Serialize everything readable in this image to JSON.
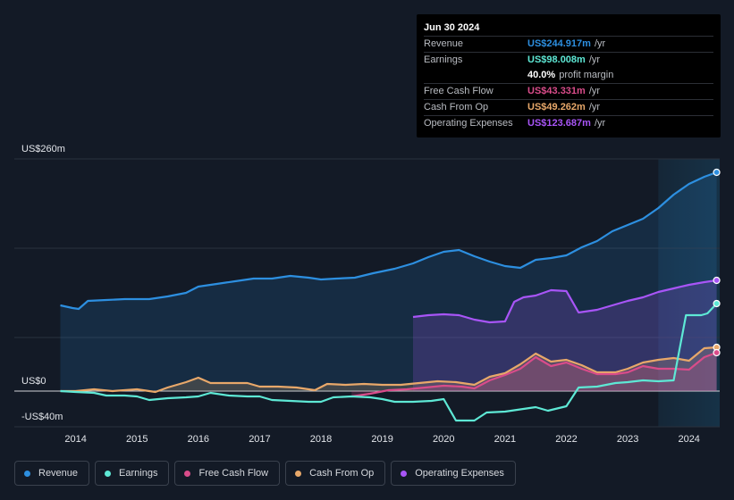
{
  "chart_data": {
    "type": "area",
    "title": "",
    "y_axis": {
      "top_label": "US$260m",
      "zero_label": "US$0",
      "bottom_label": "-US$40m",
      "ylim": [
        -40,
        260
      ]
    },
    "x_tick_labels": [
      "2014",
      "2015",
      "2016",
      "2017",
      "2018",
      "2019",
      "2020",
      "2021",
      "2022",
      "2023",
      "2024"
    ],
    "x_tick_values": [
      2014,
      2015,
      2016,
      2017,
      2018,
      2019,
      2020,
      2021,
      2022,
      2023,
      2024
    ],
    "xlim": [
      2013.0,
      2024.5
    ],
    "forecast_start": 2023.5,
    "series": [
      {
        "key": "revenue",
        "name": "Revenue",
        "color": "#2d8fe0",
        "fill": true,
        "points": [
          [
            2013.75,
            96
          ],
          [
            2013.95,
            93
          ],
          [
            2014.05,
            92
          ],
          [
            2014.2,
            101
          ],
          [
            2014.5,
            102
          ],
          [
            2014.8,
            103
          ],
          [
            2015.2,
            103
          ],
          [
            2015.5,
            106
          ],
          [
            2015.8,
            110
          ],
          [
            2016.0,
            117
          ],
          [
            2016.3,
            120
          ],
          [
            2016.6,
            123
          ],
          [
            2016.9,
            126
          ],
          [
            2017.2,
            126
          ],
          [
            2017.5,
            129
          ],
          [
            2017.8,
            127
          ],
          [
            2018.0,
            125
          ],
          [
            2018.25,
            126
          ],
          [
            2018.55,
            127
          ],
          [
            2018.85,
            132
          ],
          [
            2019.2,
            137
          ],
          [
            2019.5,
            143
          ],
          [
            2019.75,
            150
          ],
          [
            2020.0,
            156
          ],
          [
            2020.25,
            158
          ],
          [
            2020.5,
            151
          ],
          [
            2020.75,
            145
          ],
          [
            2021.0,
            140
          ],
          [
            2021.25,
            138
          ],
          [
            2021.5,
            147
          ],
          [
            2021.75,
            149
          ],
          [
            2022.0,
            152
          ],
          [
            2022.25,
            161
          ],
          [
            2022.5,
            168
          ],
          [
            2022.75,
            179
          ],
          [
            2023.0,
            186
          ],
          [
            2023.25,
            193
          ],
          [
            2023.5,
            205
          ],
          [
            2023.75,
            220
          ],
          [
            2024.0,
            232
          ],
          [
            2024.25,
            240
          ],
          [
            2024.45,
            245
          ]
        ]
      },
      {
        "key": "operating_expenses",
        "name": "Operating Expenses",
        "color": "#a855f7",
        "fill": true,
        "points": [
          [
            2019.5,
            83
          ],
          [
            2019.75,
            85
          ],
          [
            2020.0,
            86
          ],
          [
            2020.25,
            85
          ],
          [
            2020.5,
            80
          ],
          [
            2020.75,
            77
          ],
          [
            2021.0,
            78
          ],
          [
            2021.15,
            100
          ],
          [
            2021.3,
            105
          ],
          [
            2021.5,
            107
          ],
          [
            2021.75,
            113
          ],
          [
            2022.0,
            112
          ],
          [
            2022.2,
            88
          ],
          [
            2022.5,
            91
          ],
          [
            2022.75,
            96
          ],
          [
            2023.0,
            101
          ],
          [
            2023.25,
            105
          ],
          [
            2023.5,
            111
          ],
          [
            2023.75,
            115
          ],
          [
            2024.0,
            119
          ],
          [
            2024.25,
            122
          ],
          [
            2024.45,
            124
          ]
        ]
      },
      {
        "key": "cash_from_op",
        "name": "Cash From Op",
        "color": "#e8a86a",
        "fill": true,
        "points": [
          [
            2013.75,
            0
          ],
          [
            2014.0,
            0
          ],
          [
            2014.3,
            2
          ],
          [
            2014.6,
            0
          ],
          [
            2015.0,
            2
          ],
          [
            2015.3,
            -1
          ],
          [
            2015.5,
            4
          ],
          [
            2015.8,
            10
          ],
          [
            2016.0,
            15
          ],
          [
            2016.2,
            9
          ],
          [
            2016.5,
            9
          ],
          [
            2016.8,
            9
          ],
          [
            2017.0,
            5
          ],
          [
            2017.3,
            5
          ],
          [
            2017.6,
            4
          ],
          [
            2017.9,
            1
          ],
          [
            2018.1,
            8
          ],
          [
            2018.4,
            7
          ],
          [
            2018.7,
            8
          ],
          [
            2019.0,
            7
          ],
          [
            2019.3,
            7
          ],
          [
            2019.6,
            9
          ],
          [
            2019.9,
            11
          ],
          [
            2020.2,
            10
          ],
          [
            2020.5,
            7
          ],
          [
            2020.75,
            16
          ],
          [
            2021.0,
            20
          ],
          [
            2021.25,
            30
          ],
          [
            2021.5,
            42
          ],
          [
            2021.75,
            33
          ],
          [
            2022.0,
            35
          ],
          [
            2022.25,
            29
          ],
          [
            2022.5,
            21
          ],
          [
            2022.8,
            21
          ],
          [
            2023.0,
            25
          ],
          [
            2023.25,
            32
          ],
          [
            2023.5,
            35
          ],
          [
            2023.75,
            37
          ],
          [
            2024.0,
            34
          ],
          [
            2024.25,
            48
          ],
          [
            2024.45,
            49
          ]
        ]
      },
      {
        "key": "free_cash_flow",
        "name": "Free Cash Flow",
        "color": "#d94c8a",
        "fill": true,
        "points": [
          [
            2018.5,
            -6
          ],
          [
            2018.8,
            -3
          ],
          [
            2019.1,
            1
          ],
          [
            2019.4,
            2
          ],
          [
            2019.7,
            4
          ],
          [
            2020.0,
            6
          ],
          [
            2020.3,
            5
          ],
          [
            2020.5,
            3
          ],
          [
            2020.75,
            12
          ],
          [
            2021.0,
            18
          ],
          [
            2021.25,
            25
          ],
          [
            2021.5,
            38
          ],
          [
            2021.75,
            28
          ],
          [
            2022.0,
            32
          ],
          [
            2022.25,
            25
          ],
          [
            2022.5,
            19
          ],
          [
            2022.8,
            19
          ],
          [
            2023.0,
            21
          ],
          [
            2023.25,
            28
          ],
          [
            2023.5,
            25
          ],
          [
            2023.75,
            25
          ],
          [
            2024.0,
            24
          ],
          [
            2024.25,
            38
          ],
          [
            2024.45,
            43
          ]
        ]
      },
      {
        "key": "earnings",
        "name": "Earnings",
        "color": "#5ee8d5",
        "fill": false,
        "points": [
          [
            2013.75,
            0
          ],
          [
            2014.0,
            -1
          ],
          [
            2014.3,
            -2
          ],
          [
            2014.5,
            -5
          ],
          [
            2014.8,
            -5
          ],
          [
            2015.0,
            -6
          ],
          [
            2015.2,
            -10
          ],
          [
            2015.5,
            -8
          ],
          [
            2015.8,
            -7
          ],
          [
            2016.0,
            -6
          ],
          [
            2016.2,
            -2
          ],
          [
            2016.5,
            -5
          ],
          [
            2016.8,
            -6
          ],
          [
            2017.0,
            -6
          ],
          [
            2017.2,
            -10
          ],
          [
            2017.5,
            -11
          ],
          [
            2017.8,
            -12
          ],
          [
            2018.0,
            -12
          ],
          [
            2018.2,
            -7
          ],
          [
            2018.5,
            -6
          ],
          [
            2018.8,
            -7
          ],
          [
            2019.0,
            -9
          ],
          [
            2019.2,
            -12
          ],
          [
            2019.5,
            -12
          ],
          [
            2019.8,
            -11
          ],
          [
            2020.0,
            -9
          ],
          [
            2020.2,
            -33
          ],
          [
            2020.5,
            -33
          ],
          [
            2020.7,
            -24
          ],
          [
            2021.0,
            -23
          ],
          [
            2021.2,
            -21
          ],
          [
            2021.5,
            -18
          ],
          [
            2021.7,
            -22
          ],
          [
            2022.0,
            -17
          ],
          [
            2022.2,
            4
          ],
          [
            2022.5,
            5
          ],
          [
            2022.8,
            9
          ],
          [
            2023.0,
            10
          ],
          [
            2023.25,
            12
          ],
          [
            2023.5,
            11
          ],
          [
            2023.75,
            12
          ],
          [
            2023.95,
            85
          ],
          [
            2024.2,
            85
          ],
          [
            2024.3,
            87
          ],
          [
            2024.45,
            98
          ]
        ]
      }
    ],
    "legend_position": "bottom"
  },
  "tooltip": {
    "date": "Jun 30 2024",
    "rows": [
      {
        "label": "Revenue",
        "value": "US$244.917m",
        "unit": "/yr",
        "color": "#2d8fe0"
      },
      {
        "label": "Earnings",
        "value": "US$98.008m",
        "unit": "/yr",
        "color": "#5ee8d5"
      },
      {
        "label": "",
        "value": "40.0%",
        "unit": "profit margin",
        "color": "#ffffff"
      },
      {
        "label": "Free Cash Flow",
        "value": "US$43.331m",
        "unit": "/yr",
        "color": "#d94c8a"
      },
      {
        "label": "Cash From Op",
        "value": "US$49.262m",
        "unit": "/yr",
        "color": "#e8a86a"
      },
      {
        "label": "Operating Expenses",
        "value": "US$123.687m",
        "unit": "/yr",
        "color": "#a855f7"
      }
    ]
  },
  "legend": [
    {
      "label": "Revenue",
      "color": "#2d8fe0"
    },
    {
      "label": "Earnings",
      "color": "#5ee8d5"
    },
    {
      "label": "Free Cash Flow",
      "color": "#d94c8a"
    },
    {
      "label": "Cash From Op",
      "color": "#e8a86a"
    },
    {
      "label": "Operating Expenses",
      "color": "#a855f7"
    }
  ]
}
